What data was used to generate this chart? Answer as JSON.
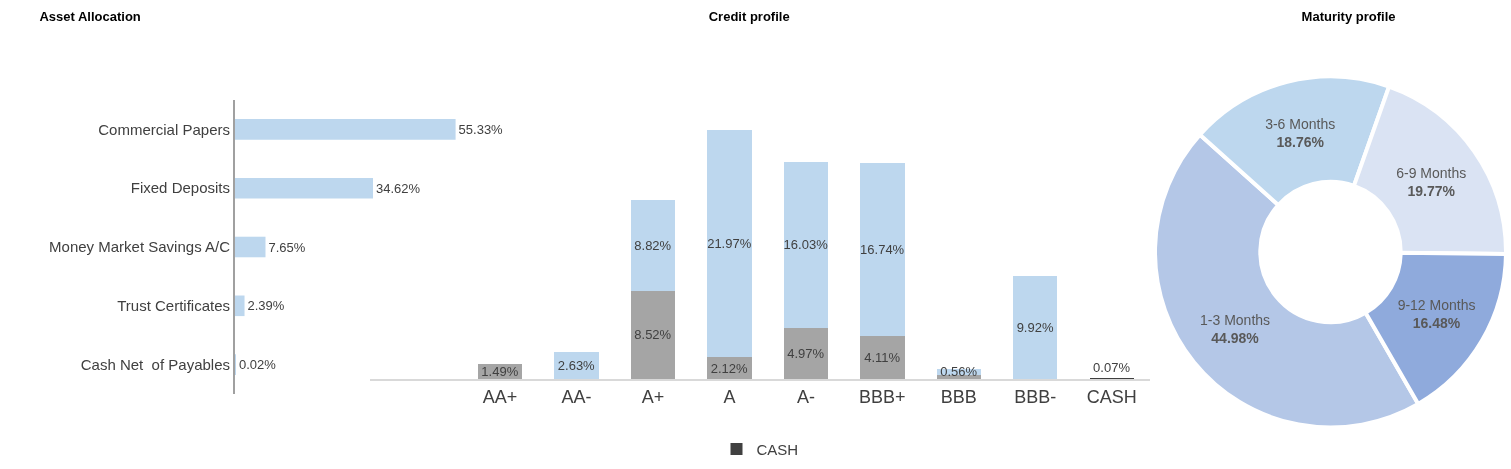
{
  "chart_data": [
    {
      "type": "bar",
      "orientation": "horizontal",
      "title": "Asset Allocation",
      "categories": [
        "Commercial Papers",
        "Fixed Deposits",
        "Money Market Savings A/C",
        "Trust Certificates",
        "Cash Net  of Payables"
      ],
      "series": [
        {
          "color": "#bdd7ee",
          "values": [
            55.33,
            34.62,
            7.65,
            2.39,
            0.02
          ],
          "value_labels": [
            "55.33%",
            "34.62%",
            "7.65%",
            "2.39%",
            "0.02%"
          ]
        }
      ],
      "legend": false,
      "grid": false
    },
    {
      "type": "bar",
      "stacked": true,
      "title": "Credit profile",
      "categories": [
        "AA+",
        "AA-",
        "A+",
        "A",
        "A-",
        "BBB+",
        "BBB",
        "BBB-",
        "CASH"
      ],
      "series": [
        {
          "color": "#a5a5a5",
          "values": [
            1.49,
            null,
            8.52,
            2.12,
            4.97,
            4.11,
            0.4,
            null,
            null
          ],
          "value_labels": [
            "1.49%",
            null,
            "8.52%",
            "2.12%",
            "4.97%",
            "4.11%",
            null,
            null,
            null
          ]
        },
        {
          "color": "#bdd7ee",
          "values": [
            null,
            2.63,
            8.82,
            21.97,
            16.03,
            16.74,
            0.56,
            9.92,
            null
          ],
          "value_labels": [
            null,
            "2.63%",
            "8.82%",
            "21.97%",
            "16.03%",
            "16.74%",
            "0.56%",
            "9.92%",
            null
          ]
        },
        {
          "name": "CASH",
          "color": "#404040",
          "values": [
            null,
            null,
            null,
            null,
            null,
            null,
            null,
            null,
            0.07
          ],
          "value_labels": [
            null,
            null,
            null,
            null,
            null,
            null,
            null,
            null,
            "0.07%"
          ]
        }
      ],
      "legend": "bottom",
      "grid": false
    },
    {
      "type": "donut",
      "title": "Maturity profile",
      "categories": [
        "1-3 Months",
        "3-6 Months",
        "6-9 Months",
        "9-12 Months"
      ],
      "values": [
        44.98,
        18.76,
        19.77,
        16.48
      ],
      "colors": [
        "#b4c7e7",
        "#bdd7ee",
        "#dae3f3",
        "#8faadc"
      ],
      "value_labels": [
        "44.98%",
        "18.76%",
        "19.77%",
        "16.48%"
      ]
    }
  ]
}
